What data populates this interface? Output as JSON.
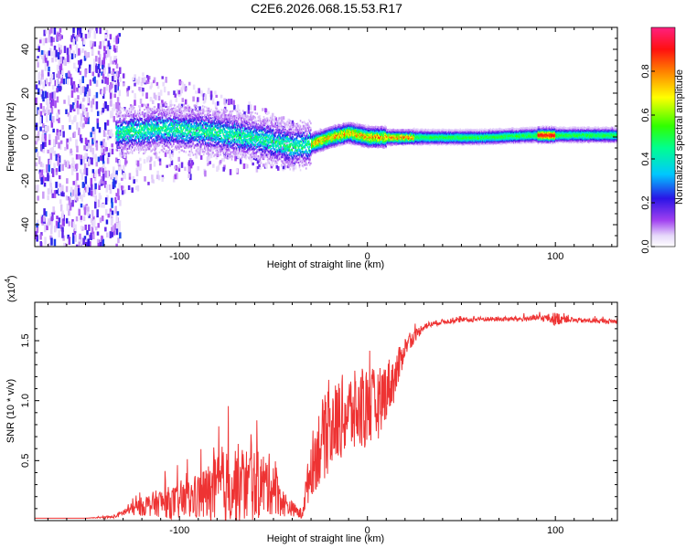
{
  "title": "C2E6.2026.068.15.53.R17",
  "chart_data": [
    {
      "type": "heatmap",
      "xlabel": "Height of straight line (km)",
      "ylabel": "Frequency (Hz)",
      "xlim": [
        -177,
        133
      ],
      "ylim": [
        -50,
        50
      ],
      "xticks": [
        -100,
        0,
        100
      ],
      "yticks": [
        -40,
        -20,
        0,
        20,
        40
      ],
      "colorbar": {
        "label": "Normalized spectral amplitude",
        "range": [
          0,
          1
        ],
        "ticks": [
          0.0,
          0.2,
          0.4,
          0.6,
          0.8
        ],
        "tick_labels": [
          "0.0",
          "0.2",
          "0.4",
          "0.6",
          "0.8"
        ]
      },
      "ridge": {
        "description_x": [
          -135,
          -110,
          -90,
          -70,
          -55,
          -40,
          -30,
          -20,
          -10,
          0,
          10,
          20,
          40,
          60,
          90,
          100,
          133
        ],
        "center_freq": [
          2,
          4,
          3,
          1,
          -1,
          -4,
          -3,
          0,
          2,
          0,
          0,
          0,
          0,
          0,
          1,
          1,
          1
        ]
      },
      "colors": [
        "#ffffff",
        "#d8c8f0",
        "#8a2be2",
        "#3b1de0",
        "#00d0f0",
        "#30ff30",
        "#ffff00",
        "#ff8000",
        "#ff2020",
        "#ff40a0"
      ]
    },
    {
      "type": "line",
      "xlabel": "Height of straight line (km)",
      "ylabel": "SNR (10 * v/v)",
      "y_multiplier": "(x10",
      "y_multiplier_exp": "4",
      "y_multiplier_close": ")",
      "xlim": [
        -177,
        133
      ],
      "ylim": [
        0,
        1.82
      ],
      "xticks": [
        -100,
        0,
        100
      ],
      "yticks": [
        0.5,
        1.0,
        1.5
      ],
      "ytick_labels": [
        "0.5",
        "1.0",
        "1.5"
      ],
      "series": [
        {
          "name": "SNR",
          "color": "#ee3333",
          "x": [
            -177,
            -150,
            -135,
            -128,
            -120,
            -110,
            -100,
            -90,
            -80,
            -70,
            -60,
            -50,
            -45,
            -40,
            -35,
            -30,
            -25,
            -20,
            -15,
            -10,
            -5,
            0,
            5,
            10,
            15,
            20,
            30,
            40,
            60,
            80,
            95,
            100,
            105,
            110,
            133
          ],
          "y": [
            0.02,
            0.02,
            0.03,
            0.08,
            0.12,
            0.15,
            0.15,
            0.2,
            0.25,
            0.3,
            0.3,
            0.3,
            0.15,
            0.1,
            0.05,
            0.45,
            0.65,
            0.75,
            0.85,
            0.9,
            0.9,
            0.95,
            0.95,
            1.1,
            1.2,
            1.45,
            1.62,
            1.66,
            1.68,
            1.68,
            1.69,
            1.68,
            1.69,
            1.67,
            1.66
          ],
          "spread": [
            0.0,
            0.0,
            0.01,
            0.04,
            0.08,
            0.12,
            0.15,
            0.2,
            0.3,
            0.35,
            0.3,
            0.25,
            0.12,
            0.06,
            0.05,
            0.25,
            0.35,
            0.35,
            0.35,
            0.35,
            0.35,
            0.35,
            0.3,
            0.25,
            0.2,
            0.08,
            0.03,
            0.02,
            0.02,
            0.02,
            0.03,
            0.06,
            0.04,
            0.02,
            0.02
          ]
        }
      ]
    }
  ]
}
